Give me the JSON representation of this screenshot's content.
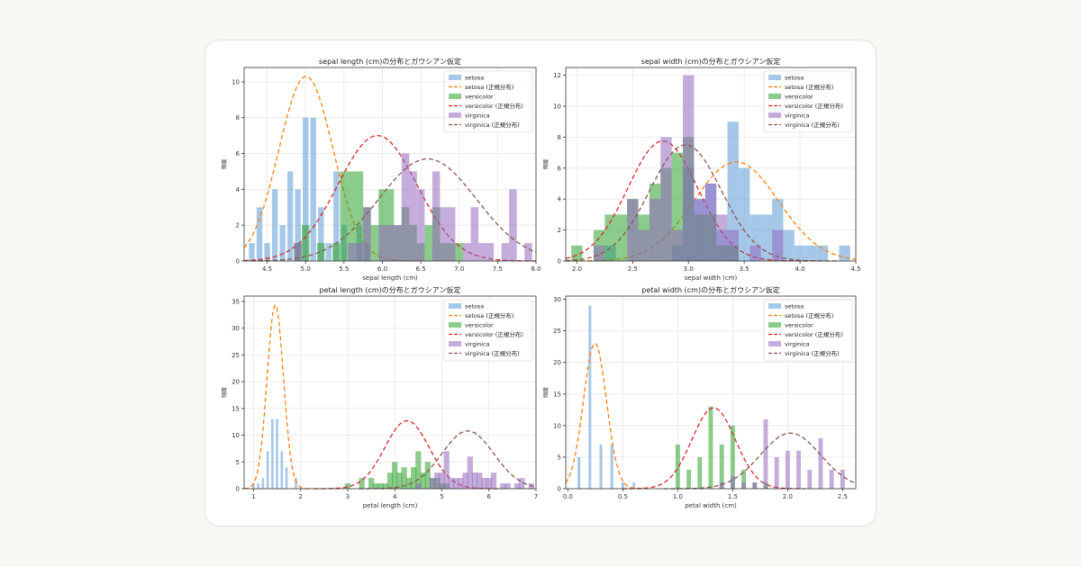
{
  "colors": {
    "setosa": "#5b9bd5",
    "setosa_curve": "#ff7f0e",
    "versicolor": "#2ca02c",
    "versicolor_curve": "#d62728",
    "virginica": "#9467bd",
    "virginica_curve": "#8c564b",
    "grid": "#e8e8e8",
    "axis": "#333333"
  },
  "chart_data": [
    {
      "type": "bar",
      "title": "sepal length (cm)の分布とガウシアン仮定",
      "xlabel": "sepal length (cm)",
      "ylabel": "頻度",
      "xlim": [
        4.2,
        8.0
      ],
      "ylim": [
        0,
        10.8
      ],
      "xticks": [
        4.5,
        5.0,
        5.5,
        6.0,
        6.5,
        7.0,
        7.5,
        8.0
      ],
      "yticks": [
        0,
        2,
        4,
        6,
        8,
        10
      ],
      "grid": true,
      "legend_position": "top-right",
      "legend": [
        "setosa",
        "setosa (正規分布)",
        "versicolor",
        "versicolor (正規分布)",
        "virginica",
        "virginica (正規分布)"
      ],
      "series": [
        {
          "name": "setosa",
          "kind": "hist",
          "bin_width": 0.075,
          "bins": [
            [
              4.3,
              1
            ],
            [
              4.4,
              3
            ],
            [
              4.5,
              1
            ],
            [
              4.6,
              4
            ],
            [
              4.7,
              2
            ],
            [
              4.8,
              5
            ],
            [
              4.9,
              4
            ],
            [
              5.0,
              8
            ],
            [
              5.1,
              8
            ],
            [
              5.2,
              3
            ],
            [
              5.3,
              1
            ],
            [
              5.4,
              5
            ],
            [
              5.5,
              2
            ],
            [
              5.7,
              2
            ],
            [
              5.8,
              1
            ]
          ]
        },
        {
          "name": "setosa (正規分布)",
          "kind": "curve",
          "mean": 5.006,
          "sd": 0.352,
          "peak": 10.3
        },
        {
          "name": "versicolor",
          "kind": "hist",
          "bin_width": 0.1,
          "bins": [
            [
              4.9,
              1
            ],
            [
              5.0,
              2
            ],
            [
              5.2,
              1
            ],
            [
              5.4,
              1
            ],
            [
              5.5,
              5
            ],
            [
              5.6,
              5
            ],
            [
              5.7,
              5
            ],
            [
              5.8,
              3
            ],
            [
              5.9,
              2
            ],
            [
              6.0,
              4
            ],
            [
              6.1,
              4
            ],
            [
              6.2,
              2
            ],
            [
              6.3,
              3
            ],
            [
              6.4,
              2
            ],
            [
              6.5,
              1
            ],
            [
              6.6,
              2
            ],
            [
              6.7,
              3
            ],
            [
              6.8,
              1
            ],
            [
              6.9,
              1
            ],
            [
              7.0,
              1
            ]
          ]
        },
        {
          "name": "versicolor (正規分布)",
          "kind": "curve",
          "mean": 5.936,
          "sd": 0.516,
          "peak": 7.0
        },
        {
          "name": "virginica",
          "kind": "hist",
          "bin_width": 0.1,
          "bins": [
            [
              4.9,
              1
            ],
            [
              5.6,
              1
            ],
            [
              5.7,
              1
            ],
            [
              5.8,
              3
            ],
            [
              6.0,
              2
            ],
            [
              6.1,
              2
            ],
            [
              6.2,
              2
            ],
            [
              6.3,
              6
            ],
            [
              6.4,
              5
            ],
            [
              6.5,
              4
            ],
            [
              6.7,
              5
            ],
            [
              6.8,
              3
            ],
            [
              6.9,
              3
            ],
            [
              7.1,
              1
            ],
            [
              7.2,
              3
            ],
            [
              7.3,
              1
            ],
            [
              7.4,
              1
            ],
            [
              7.6,
              1
            ],
            [
              7.7,
              4
            ],
            [
              7.9,
              1
            ]
          ]
        },
        {
          "name": "virginica (正規分布)",
          "kind": "curve",
          "mean": 6.588,
          "sd": 0.636,
          "peak": 5.7
        }
      ]
    },
    {
      "type": "bar",
      "title": "sepal width (cm)の分布とガウシアン仮定",
      "xlabel": "sepal width (cm)",
      "ylabel": "頻度",
      "xlim": [
        1.9,
        4.5
      ],
      "ylim": [
        0,
        12.5
      ],
      "xticks": [
        2.0,
        2.5,
        3.0,
        3.5,
        4.0,
        4.5
      ],
      "yticks": [
        0,
        2,
        4,
        6,
        8,
        10,
        12
      ],
      "grid": true,
      "legend_position": "top-right",
      "legend": [
        "setosa",
        "setosa (正規分布)",
        "versicolor",
        "versicolor (正規分布)",
        "virginica",
        "virginica (正規分布)"
      ],
      "series": [
        {
          "name": "setosa",
          "kind": "hist",
          "bin_width": 0.1,
          "bins": [
            [
              2.3,
              1
            ],
            [
              2.9,
              1
            ],
            [
              3.0,
              6
            ],
            [
              3.1,
              4
            ],
            [
              3.2,
              5
            ],
            [
              3.3,
              2
            ],
            [
              3.4,
              9
            ],
            [
              3.5,
              6
            ],
            [
              3.6,
              3
            ],
            [
              3.7,
              3
            ],
            [
              3.8,
              4
            ],
            [
              3.9,
              2
            ],
            [
              4.0,
              1
            ],
            [
              4.1,
              1
            ],
            [
              4.2,
              1
            ],
            [
              4.4,
              1
            ]
          ]
        },
        {
          "name": "setosa (正規分布)",
          "kind": "curve",
          "mean": 3.428,
          "sd": 0.379,
          "peak": 6.4
        },
        {
          "name": "versicolor",
          "kind": "hist",
          "bin_width": 0.1,
          "bins": [
            [
              2.0,
              1
            ],
            [
              2.2,
              2
            ],
            [
              2.3,
              3
            ],
            [
              2.4,
              3
            ],
            [
              2.5,
              4
            ],
            [
              2.6,
              3
            ],
            [
              2.7,
              5
            ],
            [
              2.8,
              6
            ],
            [
              2.9,
              7
            ],
            [
              3.0,
              8
            ],
            [
              3.1,
              3
            ],
            [
              3.2,
              3
            ],
            [
              3.3,
              1
            ],
            [
              3.4,
              1
            ]
          ]
        },
        {
          "name": "versicolor (正規分布)",
          "kind": "curve",
          "mean": 2.77,
          "sd": 0.314,
          "peak": 7.75
        },
        {
          "name": "virginica",
          "kind": "hist",
          "bin_width": 0.1,
          "bins": [
            [
              2.2,
              1
            ],
            [
              2.5,
              4
            ],
            [
              2.6,
              2
            ],
            [
              2.7,
              4
            ],
            [
              2.8,
              8
            ],
            [
              2.9,
              2
            ],
            [
              3.0,
              12
            ],
            [
              3.1,
              4
            ],
            [
              3.2,
              5
            ],
            [
              3.3,
              3
            ],
            [
              3.4,
              2
            ],
            [
              3.6,
              1
            ],
            [
              3.8,
              2
            ]
          ]
        },
        {
          "name": "virginica (正規分布)",
          "kind": "curve",
          "mean": 2.974,
          "sd": 0.322,
          "peak": 7.5
        }
      ]
    },
    {
      "type": "bar",
      "title": "petal length (cm)の分布とガウシアン仮定",
      "xlabel": "petal length (cm)",
      "ylabel": "頻度",
      "xlim": [
        0.8,
        7.0
      ],
      "ylim": [
        0,
        36
      ],
      "xticks": [
        1,
        2,
        3,
        4,
        5,
        6,
        7
      ],
      "yticks": [
        0,
        5,
        10,
        15,
        20,
        25,
        30,
        35
      ],
      "grid": true,
      "legend_position": "top-right",
      "legend": [
        "setosa",
        "setosa (正規分布)",
        "versicolor",
        "versicolor (正規分布)",
        "virginica",
        "virginica (正規分布)"
      ],
      "series": [
        {
          "name": "setosa",
          "kind": "hist",
          "bin_width": 0.05,
          "bins": [
            [
              1.0,
              1
            ],
            [
              1.1,
              1
            ],
            [
              1.2,
              2
            ],
            [
              1.3,
              7
            ],
            [
              1.4,
              13
            ],
            [
              1.5,
              13
            ],
            [
              1.6,
              7
            ],
            [
              1.7,
              4
            ],
            [
              1.9,
              2
            ]
          ]
        },
        {
          "name": "setosa (正規分布)",
          "kind": "curve",
          "mean": 1.462,
          "sd": 0.174,
          "peak": 34.3
        },
        {
          "name": "versicolor",
          "kind": "hist",
          "bin_width": 0.12,
          "bins": [
            [
              3.0,
              1
            ],
            [
              3.3,
              2
            ],
            [
              3.5,
              2
            ],
            [
              3.6,
              1
            ],
            [
              3.7,
              1
            ],
            [
              3.8,
              1
            ],
            [
              3.9,
              3
            ],
            [
              4.0,
              5
            ],
            [
              4.1,
              3
            ],
            [
              4.2,
              4
            ],
            [
              4.3,
              2
            ],
            [
              4.4,
              4
            ],
            [
              4.5,
              7
            ],
            [
              4.6,
              3
            ],
            [
              4.7,
              5
            ],
            [
              4.8,
              2
            ],
            [
              4.9,
              2
            ],
            [
              5.0,
              1
            ],
            [
              5.1,
              1
            ]
          ]
        },
        {
          "name": "versicolor (正規分布)",
          "kind": "curve",
          "mean": 4.26,
          "sd": 0.47,
          "peak": 12.7
        },
        {
          "name": "virginica",
          "kind": "hist",
          "bin_width": 0.12,
          "bins": [
            [
              4.5,
              1
            ],
            [
              4.8,
              2
            ],
            [
              4.9,
              3
            ],
            [
              5.0,
              3
            ],
            [
              5.1,
              7
            ],
            [
              5.2,
              2
            ],
            [
              5.3,
              2
            ],
            [
              5.4,
              2
            ],
            [
              5.5,
              3
            ],
            [
              5.6,
              6
            ],
            [
              5.7,
              3
            ],
            [
              5.8,
              3
            ],
            [
              5.9,
              2
            ],
            [
              6.0,
              2
            ],
            [
              6.1,
              3
            ],
            [
              6.3,
              1
            ],
            [
              6.4,
              1
            ],
            [
              6.6,
              1
            ],
            [
              6.7,
              2
            ],
            [
              6.9,
              1
            ]
          ]
        },
        {
          "name": "virginica (正規分布)",
          "kind": "curve",
          "mean": 5.552,
          "sd": 0.552,
          "peak": 10.8
        }
      ]
    },
    {
      "type": "bar",
      "title": "petal width (cm)の分布とガウシアン仮定",
      "xlabel": "petal width (cm)",
      "ylabel": "頻度",
      "xlim": [
        -0.02,
        2.62
      ],
      "ylim": [
        0,
        30.5
      ],
      "xticks": [
        0.0,
        0.5,
        1.0,
        1.5,
        2.0,
        2.5
      ],
      "yticks": [
        0,
        5,
        10,
        15,
        20,
        25,
        30
      ],
      "grid": true,
      "legend_position": "top-right",
      "legend": [
        "setosa",
        "setosa (正規分布)",
        "versicolor",
        "versicolor (正規分布)",
        "virginica",
        "virginica (正規分布)"
      ],
      "series": [
        {
          "name": "setosa",
          "kind": "hist",
          "bin_width": 0.025,
          "bins": [
            [
              0.1,
              5
            ],
            [
              0.2,
              29
            ],
            [
              0.3,
              7
            ],
            [
              0.4,
              7
            ],
            [
              0.5,
              1
            ],
            [
              0.6,
              1
            ]
          ]
        },
        {
          "name": "setosa (正規分布)",
          "kind": "curve",
          "mean": 0.246,
          "sd": 0.105,
          "peak": 23.0
        },
        {
          "name": "versicolor",
          "kind": "hist",
          "bin_width": 0.04,
          "bins": [
            [
              1.0,
              7
            ],
            [
              1.1,
              3
            ],
            [
              1.2,
              5
            ],
            [
              1.3,
              13
            ],
            [
              1.4,
              7
            ],
            [
              1.5,
              10
            ],
            [
              1.6,
              3
            ],
            [
              1.7,
              1
            ],
            [
              1.8,
              1
            ]
          ]
        },
        {
          "name": "versicolor (正規分布)",
          "kind": "curve",
          "mean": 1.326,
          "sd": 0.198,
          "peak": 12.8
        },
        {
          "name": "virginica",
          "kind": "hist",
          "bin_width": 0.04,
          "bins": [
            [
              1.4,
              1
            ],
            [
              1.5,
              2
            ],
            [
              1.6,
              1
            ],
            [
              1.7,
              1
            ],
            [
              1.8,
              11
            ],
            [
              1.9,
              5
            ],
            [
              2.0,
              6
            ],
            [
              2.1,
              6
            ],
            [
              2.2,
              3
            ],
            [
              2.3,
              8
            ],
            [
              2.4,
              3
            ],
            [
              2.5,
              3
            ]
          ]
        },
        {
          "name": "virginica (正規分布)",
          "kind": "curve",
          "mean": 2.026,
          "sd": 0.275,
          "peak": 8.8
        }
      ]
    }
  ]
}
